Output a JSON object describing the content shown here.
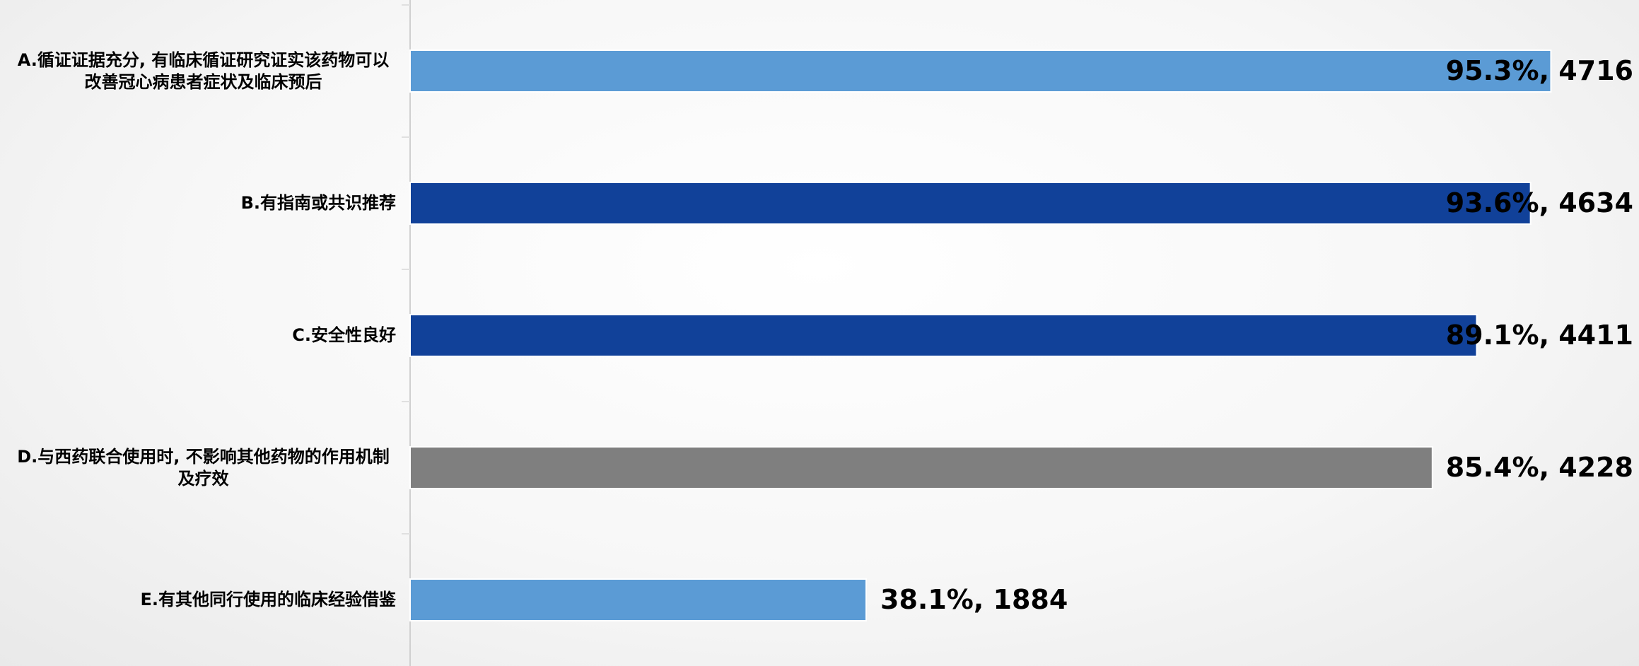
{
  "chart_data": {
    "type": "hbar",
    "categories": [
      "A.循证证据充分, 有临床循证研究证实该药物可以改善冠心病患者症状及临床预后",
      "B.有指南或共识推荐",
      "C.安全性良好",
      "D.与西药联合使用时, 不影响其他药物的作用机制及疗效",
      "E.有其他同行使用的临床经验借鉴"
    ],
    "values": [
      95.3,
      93.6,
      89.1,
      85.4,
      38.1
    ],
    "value_labels": [
      "95.3%, 4716",
      "93.6%, 4634",
      "89.1%, 4411",
      "85.4%, 4228",
      "38.1%, 1884"
    ],
    "colors": [
      "#5b9bd5",
      "#114199",
      "#114199",
      "#7f7f7f",
      "#5b9bd5"
    ],
    "xlim": [
      0,
      100
    ]
  }
}
